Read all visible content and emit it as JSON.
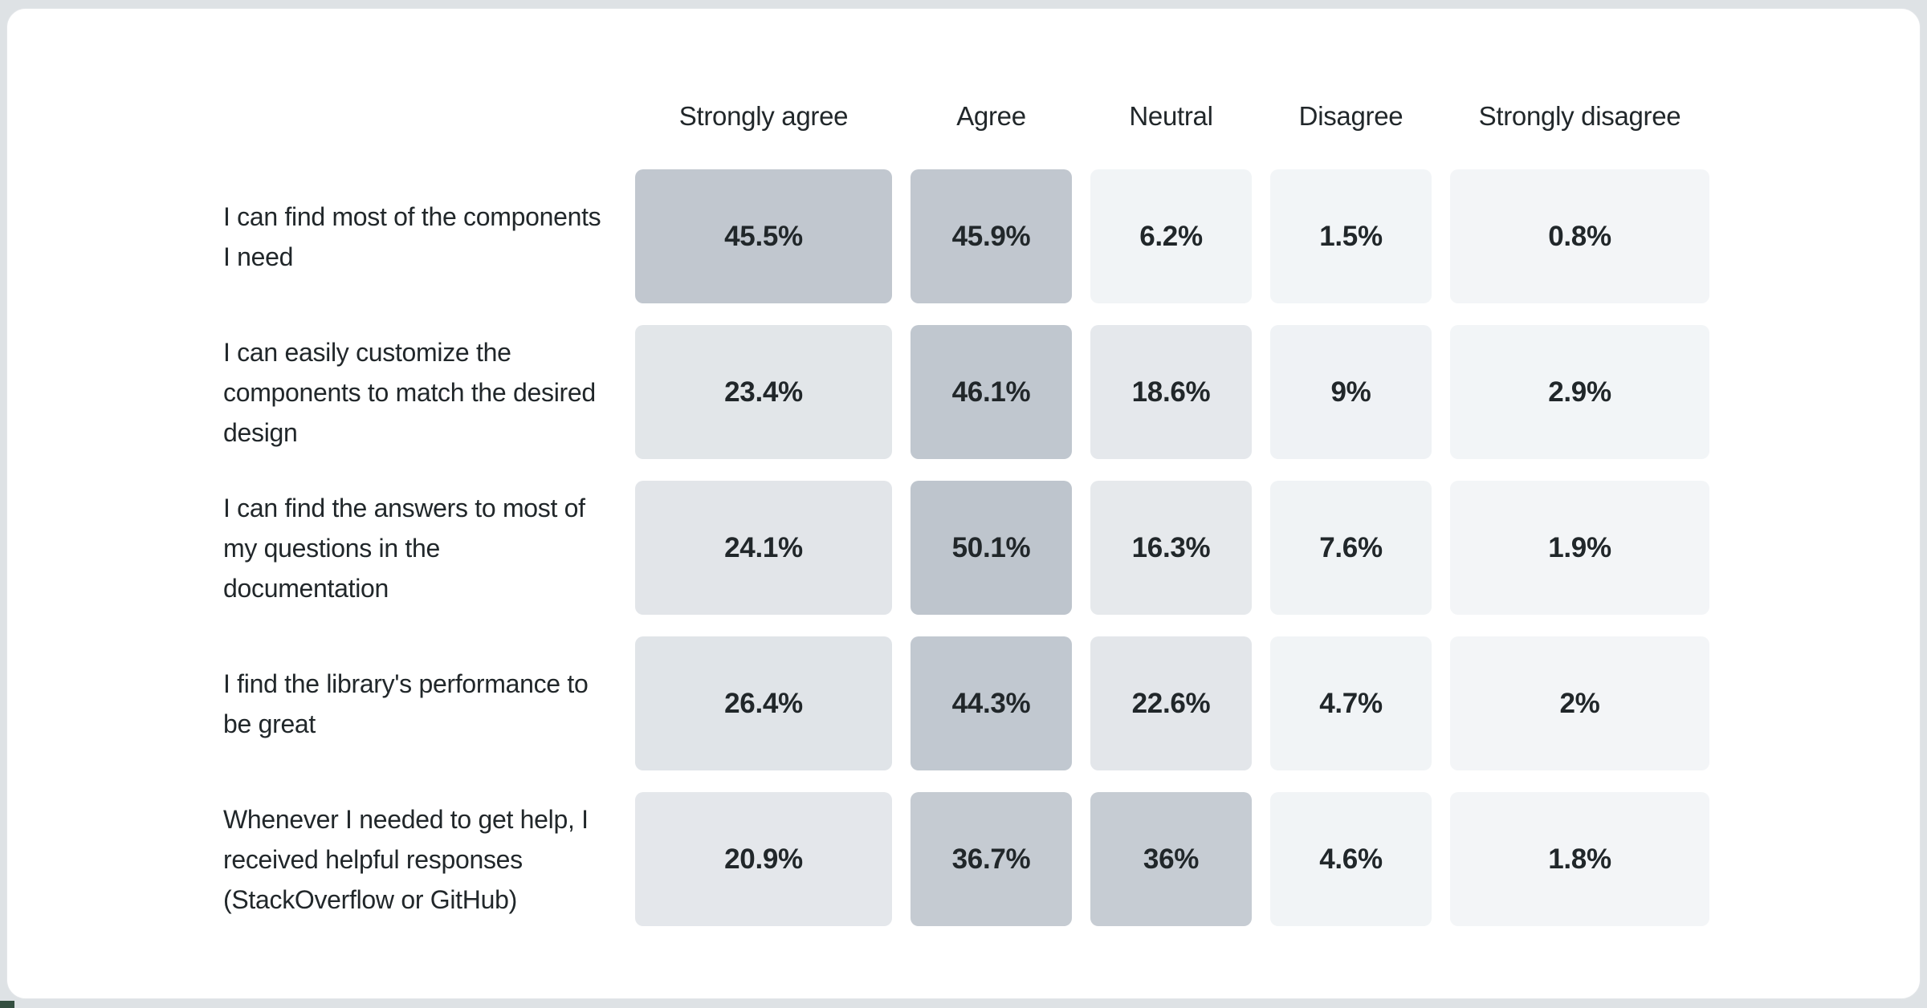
{
  "page": {
    "background_color": "#dee2e5",
    "card_background": "#ffffff",
    "card_border_color": "#e3e6e9",
    "corner_fragment_color": "#344f40",
    "text_color": "#21272a"
  },
  "chart_data": {
    "type": "heatmap",
    "title": "",
    "legend": "none",
    "value_format": "percent",
    "color_scale": {
      "min_color": "#f3f5f7",
      "max_color": "#bec5cd",
      "min_value": 0,
      "max_value": 50.1
    },
    "columns": [
      "Strongly agree",
      "Agree",
      "Neutral",
      "Disagree",
      "Strongly disagree"
    ],
    "rows": [
      {
        "label": "I can find most of the components I need",
        "values": [
          45.5,
          45.9,
          6.2,
          1.5,
          0.8
        ],
        "display": [
          "45.5%",
          "45.9%",
          "6.2%",
          "1.5%",
          "0.8%"
        ],
        "colors": [
          "#c1c7cf",
          "#c1c7cf",
          "#f1f4f6",
          "#f2f5f7",
          "#f3f5f7"
        ]
      },
      {
        "label": "I can easily customize the components to match the desired design",
        "values": [
          23.4,
          46.1,
          18.6,
          9,
          2.9
        ],
        "display": [
          "23.4%",
          "46.1%",
          "18.6%",
          "9%",
          "2.9%"
        ],
        "colors": [
          "#e2e6e9",
          "#c0c7cf",
          "#e5e8ec",
          "#eff2f5",
          "#f2f5f7"
        ]
      },
      {
        "label": "I can find the answers to most of my questions in the documentation",
        "values": [
          24.1,
          50.1,
          16.3,
          7.6,
          1.9
        ],
        "display": [
          "24.1%",
          "50.1%",
          "16.3%",
          "7.6%",
          "1.9%"
        ],
        "colors": [
          "#e2e5e9",
          "#bec5cd",
          "#e6e9ec",
          "#f0f3f5",
          "#f3f5f7"
        ]
      },
      {
        "label": "I find the library's performance to be great",
        "values": [
          26.4,
          44.3,
          22.6,
          4.7,
          2
        ],
        "display": [
          "26.4%",
          "44.3%",
          "22.6%",
          "4.7%",
          "2%"
        ],
        "colors": [
          "#e0e4e8",
          "#c1c8d0",
          "#e3e6ea",
          "#f1f4f6",
          "#f3f5f7"
        ]
      },
      {
        "label": "Whenever I needed to get help, I received helpful responses (StackOverflow or GitHub)",
        "values": [
          20.9,
          36.7,
          36,
          4.6,
          1.8
        ],
        "display": [
          "20.9%",
          "36.7%",
          "36%",
          "4.6%",
          "1.8%"
        ],
        "colors": [
          "#e4e7eb",
          "#c5cbd2",
          "#c6ccd3",
          "#f1f4f6",
          "#f3f5f7"
        ]
      }
    ]
  }
}
